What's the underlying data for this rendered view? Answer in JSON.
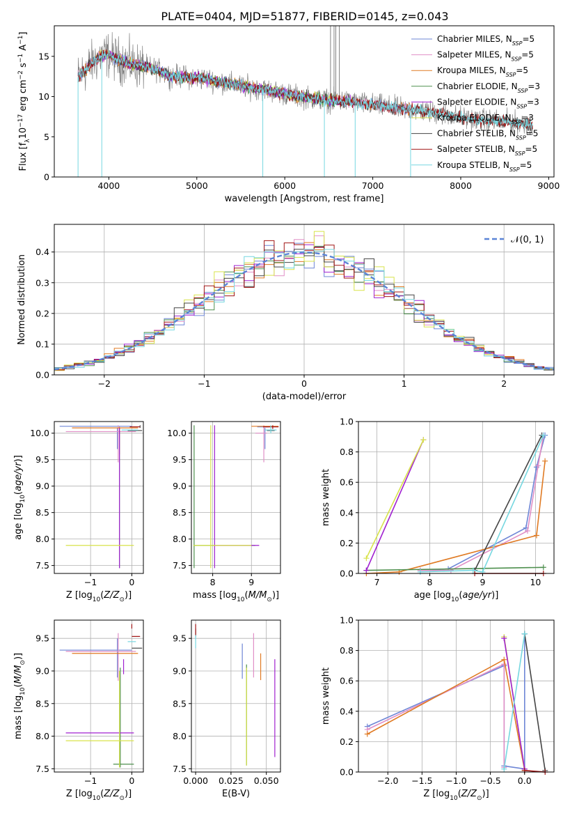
{
  "title": "PLATE=0404, MJD=51877, FIBERID=0145, z=0.043",
  "colors": {
    "Chabrier MILES": "#6e86d6",
    "Salpeter MILES": "#e08fc6",
    "Kroupa MILES": "#e07a23",
    "Chabrier ELODIE": "#4d8f4d",
    "Salpeter ELODIE": "#a020d0",
    "Kroupa ELODIE": "#d8e34a",
    "Chabrier STELIB": "#444444",
    "Salpeter STELIB": "#a01414",
    "Kroupa STELIB": "#76d7e0",
    "data": "#808080",
    "normal": "#5b84d6"
  },
  "chart_data": [
    {
      "id": "spectrum",
      "type": "line",
      "xlabel": "wavelength [Angstrom, rest frame]",
      "ylabel": "Flux [f",
      "xlim": [
        3380,
        9060
      ],
      "ylim": [
        0,
        18.8
      ],
      "xticks": [
        4000,
        5000,
        6000,
        7000,
        8000,
        9000
      ],
      "yticks": [
        0,
        5,
        10,
        15
      ],
      "grid": false,
      "legend_position": "upper right",
      "legend": [
        {
          "model": "Chabrier MILES",
          "label": "Chabrier MILES, N",
          "nssp": "=5"
        },
        {
          "model": "Salpeter MILES",
          "label": "Salpeter MILES, N",
          "nssp": "=5"
        },
        {
          "model": "Kroupa MILES",
          "label": "Kroupa MILES, N",
          "nssp": "=5"
        },
        {
          "model": "Chabrier ELODIE",
          "label": "Chabrier ELODIE, N",
          "nssp": "=3"
        },
        {
          "model": "Salpeter ELODIE",
          "label": "Salpeter ELODIE, N",
          "nssp": "=3"
        },
        {
          "model": "Kroupa ELODIE",
          "label": "Kroupa ELODIE, N",
          "nssp": "=3"
        },
        {
          "model": "Chabrier STELIB",
          "label": "Chabrier STELIB, N",
          "nssp": "=5"
        },
        {
          "model": "Salpeter STELIB",
          "label": "Salpeter STELIB, N",
          "nssp": "=5"
        },
        {
          "model": "Kroupa STELIB",
          "label": "Kroupa STELIB, N",
          "nssp": "=5"
        }
      ],
      "continuum": [
        [
          3650,
          12.4
        ],
        [
          3750,
          13.5
        ],
        [
          3900,
          15.0
        ],
        [
          4000,
          15.2
        ],
        [
          4100,
          14.6
        ],
        [
          4300,
          13.9
        ],
        [
          4500,
          13.5
        ],
        [
          4700,
          12.6
        ],
        [
          4900,
          12.4
        ],
        [
          5100,
          12.2
        ],
        [
          5300,
          11.8
        ],
        [
          5500,
          11.3
        ],
        [
          5700,
          11.0
        ],
        [
          5900,
          10.6
        ],
        [
          6100,
          10.1
        ],
        [
          6300,
          9.8
        ],
        [
          6500,
          9.5
        ],
        [
          6700,
          9.4
        ],
        [
          6900,
          9.1
        ],
        [
          7100,
          8.8
        ],
        [
          7300,
          8.5
        ],
        [
          7500,
          8.3
        ],
        [
          7700,
          8.0
        ],
        [
          7900,
          7.6
        ],
        [
          8100,
          7.2
        ],
        [
          8300,
          7.0
        ],
        [
          8500,
          6.9
        ],
        [
          8700,
          6.6
        ],
        [
          8820,
          6.5
        ]
      ],
      "model_extent": {
        "MILES": [
          3650,
          7420
        ],
        "ELODIE": [
          3900,
          6790
        ],
        "STELIB": [
          3650,
          8820
        ]
      },
      "absorption_spikes": [
        [
          3650,
          0
        ],
        [
          3920,
          0
        ],
        [
          5750,
          0
        ],
        [
          6450,
          0
        ],
        [
          6800,
          0
        ],
        [
          7430,
          0
        ]
      ],
      "emission_spikes": [
        [
          6520,
          18.8
        ],
        [
          6560,
          18.8
        ],
        [
          6580,
          18.8
        ],
        [
          6620,
          18.8
        ]
      ]
    },
    {
      "id": "residuals",
      "type": "histogram",
      "xlabel": "(data-model)/error",
      "ylabel": "Normed distribution",
      "xlim": [
        -2.5,
        2.5
      ],
      "ylim": [
        0,
        0.49
      ],
      "xticks": [
        -2,
        -1,
        0,
        1,
        2
      ],
      "yticks": [
        0.0,
        0.1,
        0.2,
        0.3,
        0.4
      ],
      "grid": true,
      "bin_width": 0.1,
      "legend": [
        {
          "label": "𝒩(0, 1)",
          "style": "dashed"
        }
      ],
      "legend_position": "upper right"
    },
    {
      "id": "age-vs-Z",
      "type": "scatter",
      "xlabel": "Z [log",
      "ylabel": "age  [log",
      "xlim": [
        -1.88,
        0.28
      ],
      "ylim": [
        7.35,
        10.22
      ],
      "xticks": [
        -1,
        0
      ],
      "yticks": [
        7.5,
        8.0,
        8.5,
        9.0,
        9.5,
        10.0
      ],
      "grid": true
    },
    {
      "id": "age-vs-mass",
      "type": "scatter",
      "xlabel": "mass [log",
      "ylabel": "",
      "xlim": [
        7.45,
        9.75
      ],
      "ylim": [
        7.35,
        10.22
      ],
      "xticks": [
        8,
        9
      ],
      "yticks": [
        7.5,
        8.0,
        8.5,
        9.0,
        9.5,
        10.0
      ],
      "grid": true
    },
    {
      "id": "massweight-vs-age",
      "type": "line",
      "xlabel": "age  [log",
      "ylabel": "mass weight",
      "xlim": [
        6.65,
        10.35
      ],
      "ylim": [
        0,
        1.0
      ],
      "xticks": [
        7,
        8,
        9,
        10
      ],
      "yticks": [
        0.0,
        0.2,
        0.4,
        0.6,
        0.8,
        1.0
      ],
      "grid": true
    },
    {
      "id": "mass-vs-Z",
      "type": "scatter",
      "xlabel": "Z [log",
      "ylabel": "mass [log",
      "xlim": [
        -1.88,
        0.28
      ],
      "ylim": [
        7.45,
        9.78
      ],
      "xticks": [
        -1,
        0
      ],
      "yticks": [
        7.5,
        8.0,
        8.5,
        9.0,
        9.5
      ],
      "grid": true
    },
    {
      "id": "mass-vs-ebv",
      "type": "scatter",
      "xlabel": "E(B-V)",
      "ylabel": "",
      "xlim": [
        -0.003,
        0.06
      ],
      "ylim": [
        7.45,
        9.78
      ],
      "xticks": [
        0.0,
        0.025,
        0.05
      ],
      "yticks": [
        7.5,
        8.0,
        8.5,
        9.0,
        9.5
      ],
      "grid": true
    },
    {
      "id": "massweight-vs-Z",
      "type": "line",
      "xlabel": "Z [log",
      "ylabel": "mass weight",
      "xlim": [
        -2.43,
        0.43
      ],
      "ylim": [
        0,
        1.0
      ],
      "xticks": [
        -2.0,
        -1.5,
        -1.0,
        -0.5,
        0.0
      ],
      "yticks": [
        0.0,
        0.2,
        0.4,
        0.6,
        0.8,
        1.0
      ],
      "grid": true
    }
  ],
  "fits": {
    "Chabrier MILES": {
      "age": [
        7.82,
        8.35,
        9.82,
        10.02,
        10.18
      ],
      "Z": [
        -2.3,
        -0.7,
        -0.3,
        0.0,
        0.0
      ],
      "w": [
        0.02,
        0.03,
        0.3,
        0.7,
        0.91
      ],
      "wZ": [
        [
          -2.3,
          0.3
        ],
        [
          -0.3,
          0.7
        ],
        [
          -0.3,
          0.04
        ],
        [
          0.0,
          0.02
        ],
        [
          0.0,
          0.91
        ]
      ],
      "ageZ": [
        [
          -1.75,
          10.13,
          0.0,
          10.13
        ],
        [
          -0.35,
          9.7,
          -0.35,
          10.1
        ]
      ],
      "ageMass": [
        [
          9.15,
          10.12,
          9.45,
          10.12
        ],
        [
          9.35,
          9.7,
          9.35,
          10.1
        ]
      ],
      "massZ": [
        [
          -1.75,
          9.32,
          0.0,
          9.32
        ],
        [
          -0.35,
          8.9,
          -0.35,
          9.5
        ]
      ],
      "ebv": [
        0.033,
        8.88,
        0.033,
        9.42
      ]
    },
    "Salpeter MILES": {
      "w": [
        0.02,
        0.02,
        0.28,
        0.71,
        0.91
      ],
      "wZ": [
        [
          -2.3,
          0.28
        ],
        [
          -0.3,
          0.71
        ],
        [
          -0.3,
          0.03
        ]
      ],
      "age": [
        7.82,
        8.4,
        9.85,
        10.05,
        10.15
      ],
      "ageZ": [
        [
          -1.6,
          10.03,
          0.1,
          10.03
        ],
        [
          -0.33,
          9.45,
          -0.33,
          10.15
        ]
      ],
      "ageMass": [
        [
          9.1,
          10.0,
          9.4,
          10.0
        ],
        [
          9.32,
          9.45,
          9.32,
          10.15
        ]
      ],
      "massZ": [
        [
          -1.6,
          9.3,
          0.1,
          9.3
        ],
        [
          -0.33,
          8.85,
          -0.33,
          9.58
        ]
      ],
      "ebv": [
        0.041,
        8.9,
        0.041,
        9.58
      ]
    },
    "Kroupa MILES": {
      "age": [
        6.8,
        7.42,
        10.02,
        10.18
      ],
      "w": [
        0.0,
        0.01,
        0.25,
        0.74
      ],
      "wZ": [
        [
          -2.3,
          0.25
        ],
        [
          -0.3,
          0.74
        ],
        [
          0.0,
          0.01
        ]
      ],
      "ageZ": [
        [
          -1.45,
          10.1,
          0.15,
          10.1
        ],
        [
          -0.3,
          9.6,
          -0.3,
          10.12
        ]
      ],
      "ageMass": [
        [
          9.0,
          10.13,
          9.7,
          10.13
        ]
      ],
      "massZ": [
        [
          -1.45,
          9.27,
          0.15,
          9.27
        ]
      ],
      "ebv": [
        0.046,
        8.86,
        0.046,
        9.27
      ]
    },
    "Chabrier ELODIE": {
      "age": [
        6.8,
        10.15
      ],
      "w": [
        0.02,
        0.04
      ],
      "ageZ": [
        [
          -0.3,
          7.45,
          -0.3,
          10.1
        ]
      ],
      "ageMass": [
        [
          7.52,
          7.45,
          7.52,
          10.15
        ],
        [
          7.52,
          7.88,
          9.1,
          7.88
        ]
      ],
      "massZ": [
        [
          -0.45,
          7.57,
          0.05,
          7.57
        ],
        [
          -0.28,
          7.52,
          -0.28,
          9.05
        ]
      ],
      "ebv": [
        0.036,
        7.55,
        0.036,
        9.1
      ]
    },
    "Salpeter ELODIE": {
      "age": [
        6.8,
        7.88
      ],
      "w": [
        0.02,
        0.88
      ],
      "ageZ": [
        [
          -0.3,
          7.45,
          -0.3,
          10.1
        ]
      ],
      "ageMass": [
        [
          8.05,
          7.45,
          8.05,
          10.15
        ],
        [
          8.05,
          7.88,
          9.2,
          7.88
        ]
      ],
      "massZ": [
        [
          -1.6,
          8.05,
          0.05,
          8.05
        ],
        [
          -0.2,
          8.95,
          -0.2,
          9.18
        ]
      ],
      "ebv": [
        0.056,
        7.68,
        0.056,
        9.18
      ]
    },
    "Kroupa ELODIE": {
      "age": [
        6.8,
        7.88
      ],
      "w": [
        0.1,
        0.88
      ],
      "ageZ": [
        [
          -1.6,
          7.88,
          0.05,
          7.88
        ]
      ],
      "ageMass": [
        [
          7.95,
          7.45,
          7.95,
          10.15
        ],
        [
          7.5,
          7.88,
          9.0,
          7.88
        ]
      ],
      "massZ": [
        [
          -1.6,
          7.93,
          0.05,
          7.93
        ],
        [
          -0.3,
          7.52,
          -0.3,
          9.0
        ]
      ],
      "ebv": [
        0.036,
        7.55,
        0.036,
        9.05
      ]
    },
    "Chabrier STELIB": {
      "age": [
        8.85,
        10.12
      ],
      "w": [
        0.02,
        0.91
      ],
      "ageZ": [
        [
          -0.1,
          10.05,
          0.25,
          10.05
        ],
        [
          0.2,
          10.1,
          0.2,
          10.15
        ]
      ],
      "ageMass": [
        [
          9.4,
          10.05,
          9.6,
          10.05
        ]
      ],
      "massZ": [
        [
          0.0,
          9.35,
          0.25,
          9.35
        ]
      ],
      "ebv": [
        0.0,
        9.52,
        0.0,
        9.65
      ]
    },
    "Salpeter STELIB": {
      "age": [
        8.85,
        10.15
      ],
      "w": [
        0.0,
        0.0
      ],
      "ageZ": [
        [
          -0.05,
          10.12,
          0.2,
          10.12
        ]
      ],
      "ageMass": [
        [
          9.3,
          10.12,
          9.7,
          10.12
        ],
        [
          9.55,
          10.08,
          9.55,
          10.15
        ]
      ],
      "massZ": [
        [
          0.0,
          9.53,
          0.2,
          9.53
        ],
        [
          0.0,
          9.65,
          0.0,
          9.72
        ]
      ],
      "ebv": [
        0.0,
        9.55,
        0.0,
        9.72
      ]
    },
    "Kroupa STELIB": {
      "age": [
        7.82,
        8.82,
        9.0,
        10.15
      ],
      "w": [
        0.01,
        0.02,
        0.01,
        0.91
      ],
      "ageZ": [
        [
          -0.25,
          10.06,
          0.15,
          10.06
        ]
      ],
      "ageMass": [
        [
          9.35,
          10.06,
          9.65,
          10.06
        ],
        [
          9.5,
          10.0,
          9.5,
          10.15
        ]
      ],
      "massZ": [
        [
          -0.1,
          9.45,
          0.1,
          9.45
        ]
      ],
      "ebv": [
        0.0,
        9.35,
        0.0,
        9.55
      ]
    }
  }
}
